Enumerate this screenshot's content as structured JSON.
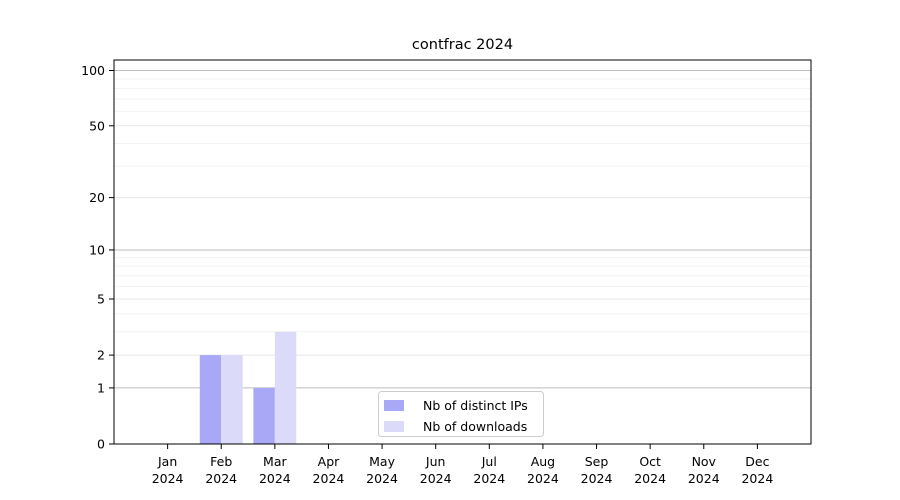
{
  "title": "contfrac 2024",
  "chart_data": {
    "type": "bar",
    "title": "contfrac 2024",
    "categories": [
      "Jan",
      "Feb",
      "Mar",
      "Apr",
      "May",
      "Jun",
      "Jul",
      "Aug",
      "Sep",
      "Oct",
      "Nov",
      "Dec"
    ],
    "x_year_label": "2024",
    "series": [
      {
        "name": "Nb of distinct IPs",
        "color": "#a8a8f6",
        "values": [
          0,
          2,
          1,
          0,
          0,
          0,
          0,
          0,
          0,
          0,
          0,
          0
        ]
      },
      {
        "name": "Nb of downloads",
        "color": "#dbdbf9",
        "values": [
          0,
          2,
          3,
          0,
          0,
          0,
          0,
          0,
          0,
          0,
          0,
          0
        ]
      }
    ],
    "yscale": "log10(1+v)",
    "y_ticks": [
      0,
      1,
      2,
      5,
      10,
      20,
      50,
      100
    ],
    "y_major_grid": [
      1,
      10,
      100
    ],
    "y_minor_grid": [
      3,
      4,
      6,
      7,
      8,
      9,
      30,
      40,
      60,
      70,
      80,
      90
    ],
    "ylim": [
      0,
      114
    ],
    "xlabel": "",
    "ylabel": "",
    "grid": true,
    "legend_position": "lower-center",
    "colors": {
      "background": "#ffffff",
      "axis_line": "#000000",
      "grid_major": "#bdbdbd",
      "grid_mid": "#e7e7e7",
      "grid_minor": "#f3f3f3",
      "legend_border": "#cccccc",
      "legend_background": "#ffffff",
      "tick_text": "#000000"
    }
  }
}
